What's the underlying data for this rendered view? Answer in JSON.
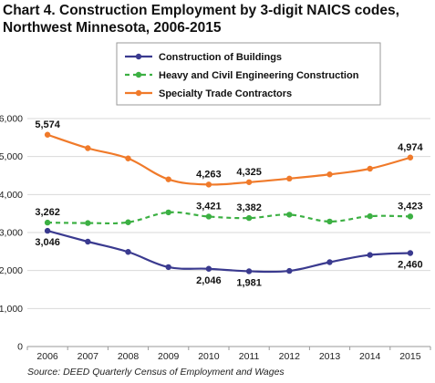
{
  "chart_data": {
    "type": "line",
    "title_line1": "Chart 4. Construction Employment by 3-digit NAICS codes,",
    "title_line2": "Northwest Minnesota, 2006-2015",
    "source": "Source: DEED Quarterly Census of Employment and Wages",
    "x": [
      "2006",
      "2007",
      "2008",
      "2009",
      "2010",
      "2011",
      "2012",
      "2013",
      "2014",
      "2015"
    ],
    "ylim": [
      0,
      6000
    ],
    "yticks": [
      0,
      1000,
      2000,
      3000,
      4000,
      5000,
      6000
    ],
    "ytick_labels": [
      "0",
      "1,000",
      "2,000",
      "3,000",
      "4,000",
      "5,000",
      "6,000"
    ],
    "grid": true,
    "legend_position": "top-center",
    "series": [
      {
        "name": "Construction of Buildings",
        "color": "#3a3a8f",
        "style": "solid",
        "values": [
          3046,
          2760,
          2490,
          2090,
          2046,
          1981,
          1990,
          2220,
          2410,
          2460
        ],
        "labels": [
          {
            "index": 0,
            "text": "3,046",
            "pos": "below"
          },
          {
            "index": 4,
            "text": "2,046",
            "pos": "below"
          },
          {
            "index": 5,
            "text": "1,981",
            "pos": "below"
          },
          {
            "index": 9,
            "text": "2,460",
            "pos": "below"
          }
        ]
      },
      {
        "name": "Heavy and Civil Engineering Construction",
        "color": "#3cb043",
        "style": "dashed",
        "values": [
          3262,
          3250,
          3270,
          3530,
          3421,
          3382,
          3470,
          3290,
          3430,
          3423
        ],
        "labels": [
          {
            "index": 0,
            "text": "3,262",
            "pos": "above"
          },
          {
            "index": 4,
            "text": "3,421",
            "pos": "above"
          },
          {
            "index": 5,
            "text": "3,382",
            "pos": "above"
          },
          {
            "index": 9,
            "text": "3,423",
            "pos": "above"
          }
        ]
      },
      {
        "name": "Specialty Trade Contractors",
        "color": "#f07a2a",
        "style": "solid",
        "values": [
          5574,
          5220,
          4950,
          4400,
          4263,
          4325,
          4420,
          4530,
          4680,
          4974
        ],
        "labels": [
          {
            "index": 0,
            "text": "5,574",
            "pos": "above"
          },
          {
            "index": 4,
            "text": "4,263",
            "pos": "above"
          },
          {
            "index": 5,
            "text": "4,325",
            "pos": "above"
          },
          {
            "index": 9,
            "text": "4,974",
            "pos": "above"
          }
        ]
      }
    ]
  }
}
